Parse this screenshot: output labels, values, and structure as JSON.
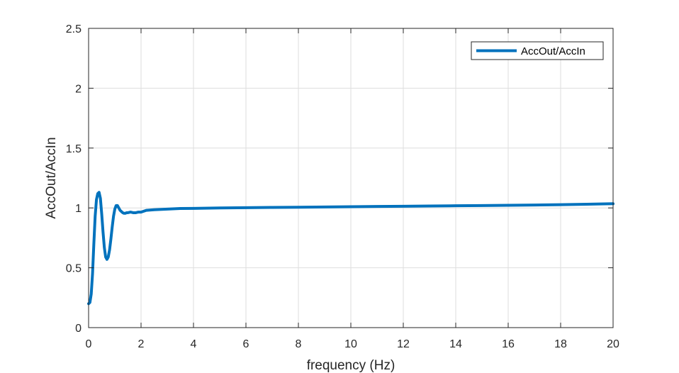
{
  "chart_data": {
    "type": "line",
    "title": "",
    "xlabel": "frequency (Hz)",
    "ylabel": "AccOut/AccIn",
    "xlim": [
      0,
      20
    ],
    "ylim": [
      0,
      2.5
    ],
    "xticks": [
      "0",
      "2",
      "4",
      "6",
      "8",
      "10",
      "12",
      "14",
      "16",
      "18",
      "20"
    ],
    "yticks": [
      "0",
      "0.5",
      "1",
      "1.5",
      "2",
      "2.5"
    ],
    "grid": true,
    "legend_position": "top-right",
    "series": [
      {
        "name": "AccOut/AccIn",
        "color": "#0072BD",
        "x": [
          0.0,
          0.05,
          0.1,
          0.15,
          0.2,
          0.25,
          0.3,
          0.35,
          0.4,
          0.45,
          0.5,
          0.55,
          0.6,
          0.65,
          0.7,
          0.75,
          0.8,
          0.85,
          0.9,
          0.95,
          1.0,
          1.05,
          1.1,
          1.15,
          1.2,
          1.25,
          1.3,
          1.35,
          1.4,
          1.45,
          1.5,
          1.6,
          1.7,
          1.8,
          1.9,
          2.0,
          2.2,
          2.5,
          3.0,
          3.5,
          4.0,
          5.0,
          6.0,
          7.0,
          8.0,
          9.0,
          10.0,
          11.0,
          12.0,
          13.0,
          14.0,
          15.0,
          16.0,
          17.0,
          18.0,
          19.0,
          20.0
        ],
        "y": [
          0.2,
          0.21,
          0.28,
          0.45,
          0.7,
          0.93,
          1.07,
          1.12,
          1.13,
          1.08,
          0.95,
          0.8,
          0.67,
          0.59,
          0.57,
          0.59,
          0.65,
          0.74,
          0.84,
          0.93,
          0.99,
          1.02,
          1.02,
          1.0,
          0.98,
          0.97,
          0.96,
          0.955,
          0.955,
          0.96,
          0.96,
          0.965,
          0.96,
          0.96,
          0.965,
          0.965,
          0.98,
          0.985,
          0.99,
          0.995,
          0.996,
          1.0,
          1.002,
          1.004,
          1.006,
          1.008,
          1.01,
          1.012,
          1.014,
          1.016,
          1.018,
          1.02,
          1.022,
          1.024,
          1.027,
          1.031,
          1.035
        ]
      }
    ]
  }
}
